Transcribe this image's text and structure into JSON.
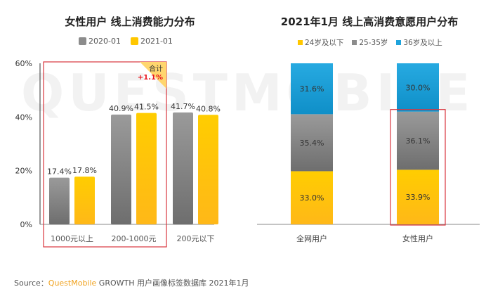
{
  "watermark": "QUESTMOBILE",
  "source": {
    "prefix": "Source：",
    "brand": "QuestMobile",
    "rest": " GROWTH 用户画像标签数据库 2021年1月"
  },
  "chart_data": [
    {
      "type": "bar",
      "title": "女性用户 线上消费能力分布",
      "categories": [
        "1000元以上",
        "200-1000元",
        "200元以下"
      ],
      "series": [
        {
          "name": "2020-01",
          "color": "#8c8c8c",
          "values": [
            17.4,
            40.9,
            41.7
          ],
          "labels": [
            "17.4%",
            "40.9%",
            "41.7%"
          ]
        },
        {
          "name": "2021-01",
          "color": "#ffc700",
          "values": [
            17.8,
            41.5,
            40.8
          ],
          "labels": [
            "17.8%",
            "41.5%",
            "40.8%"
          ]
        }
      ],
      "yticks": [
        "0%",
        "20%",
        "40%",
        "60%"
      ],
      "ylim": [
        0,
        60
      ],
      "ylabel": "",
      "xlabel": "",
      "legend": "top",
      "highlight": {
        "categories": [
          "1000元以上",
          "200-1000元"
        ],
        "badge_label": "合计",
        "badge_value": "+1.1%",
        "badge_color": "#e8141c"
      }
    },
    {
      "type": "bar",
      "stacked": true,
      "title": "2021年1月 线上高消费意愿用户分布",
      "categories": [
        "全网用户",
        "女性用户"
      ],
      "series": [
        {
          "name": "24岁及以下",
          "color": "#ffc700",
          "values": [
            33.0,
            33.9
          ],
          "labels": [
            "33.0%",
            "33.9%"
          ]
        },
        {
          "name": "25-35岁",
          "color": "#8c8c8c",
          "values": [
            35.4,
            36.1
          ],
          "labels": [
            "35.4%",
            "36.1%"
          ]
        },
        {
          "name": "36岁及以上",
          "color": "#1fa3dc",
          "values": [
            31.6,
            30.0
          ],
          "labels": [
            "31.6%",
            "30.0%"
          ]
        }
      ],
      "ylim": [
        0,
        100
      ],
      "legend": "top",
      "highlight": {
        "category": "女性用户",
        "series": [
          "25-35岁",
          "24岁及以下"
        ]
      }
    }
  ]
}
